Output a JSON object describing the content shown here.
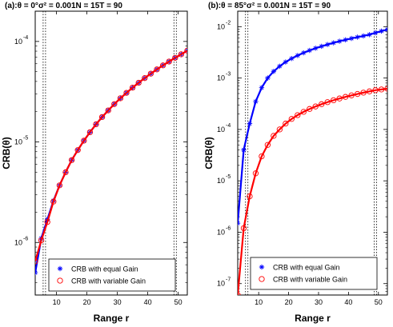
{
  "chart_data": [
    {
      "type": "line",
      "yscale": "log",
      "title": {
        "prefix": "(a):",
        "theta": "θ = 0°",
        "sigma": "σ² = 0.001",
        "n": "N = 15",
        "t": "T = 90"
      },
      "xlabel": "Range  r",
      "ylabel": "CRB(θ)",
      "xlim": [
        3,
        53
      ],
      "ylim": [
        3e-07,
        0.0002
      ],
      "xticks": [
        "10",
        "20",
        "30",
        "40",
        "50"
      ],
      "yticks": [
        {
          "mant": "10",
          "exp": "-6",
          "value": 1e-06
        },
        {
          "mant": "10",
          "exp": "-5",
          "value": 1e-05
        },
        {
          "mant": "10",
          "exp": "-4",
          "value": 0.0001
        }
      ],
      "vlines": [
        6,
        49
      ],
      "legend_position": "bottom-right",
      "series": [
        {
          "name": "CRB with equal Gain",
          "color": "#0000ff",
          "marker": "star",
          "x": [
            3,
            5,
            7,
            9,
            11,
            13,
            15,
            17,
            19,
            21,
            23,
            25,
            27,
            29,
            31,
            33,
            35,
            37,
            39,
            41,
            43,
            45,
            47,
            49,
            51,
            53
          ],
          "y": [
            5e-07,
            1.1e-06,
            1.7e-06,
            2.6e-06,
            3.7e-06,
            5e-06,
            6.6e-06,
            8.3e-06,
            1.03e-05,
            1.25e-05,
            1.5e-05,
            1.77e-05,
            2.06e-05,
            2.38e-05,
            2.72e-05,
            3.08e-05,
            3.47e-05,
            3.88e-05,
            4.32e-05,
            4.78e-05,
            5.27e-05,
            5.78e-05,
            6.31e-05,
            6.87e-05,
            7.45e-05,
            8.1e-05
          ]
        },
        {
          "name": "CRB with variable Gain",
          "color": "#ff0000",
          "marker": "circle",
          "x": [
            3,
            5,
            7,
            9,
            11,
            13,
            15,
            17,
            19,
            21,
            23,
            25,
            27,
            29,
            31,
            33,
            35,
            37,
            39,
            41,
            43,
            45,
            47,
            49,
            51,
            53
          ],
          "y": [
            6.5e-07,
            1.05e-06,
            1.6e-06,
            2.55e-06,
            3.7e-06,
            5e-06,
            6.6e-06,
            8.3e-06,
            1.03e-05,
            1.25e-05,
            1.5e-05,
            1.77e-05,
            2.06e-05,
            2.38e-05,
            2.72e-05,
            3.08e-05,
            3.47e-05,
            3.88e-05,
            4.32e-05,
            4.78e-05,
            5.27e-05,
            5.78e-05,
            6.31e-05,
            6.87e-05,
            7.45e-05,
            8.1e-05
          ]
        }
      ]
    },
    {
      "type": "line",
      "yscale": "log",
      "title": {
        "prefix": "(b):",
        "theta": "θ = 85°",
        "sigma": "σ² = 0.001",
        "n": "N = 15",
        "t": "T = 90"
      },
      "xlabel": "Range  r",
      "ylabel": "CRB(θ)",
      "xlim": [
        3,
        53
      ],
      "ylim": [
        6e-08,
        0.02
      ],
      "xticks": [
        "10",
        "20",
        "30",
        "40",
        "50"
      ],
      "yticks": [
        {
          "mant": "10",
          "exp": "-7",
          "value": 1e-07
        },
        {
          "mant": "10",
          "exp": "-6",
          "value": 1e-06
        },
        {
          "mant": "10",
          "exp": "-5",
          "value": 1e-05
        },
        {
          "mant": "10",
          "exp": "-4",
          "value": 0.0001
        },
        {
          "mant": "10",
          "exp": "-3",
          "value": 0.001
        },
        {
          "mant": "10",
          "exp": "-2",
          "value": 0.01
        }
      ],
      "vlines": [
        6,
        49
      ],
      "legend_position": "bottom-right",
      "series": [
        {
          "name": "CRB with equal Gain",
          "color": "#0000ff",
          "marker": "star",
          "x": [
            3,
            5,
            7,
            9,
            11,
            13,
            15,
            17,
            19,
            21,
            23,
            25,
            27,
            29,
            31,
            33,
            35,
            37,
            39,
            41,
            43,
            45,
            47,
            49,
            51,
            53
          ],
          "y": [
            1.5e-06,
            4e-05,
            0.00013,
            0.00035,
            0.00065,
            0.001,
            0.00135,
            0.0017,
            0.00205,
            0.0024,
            0.00275,
            0.0031,
            0.00345,
            0.0038,
            0.00415,
            0.0045,
            0.00485,
            0.0052,
            0.00555,
            0.0059,
            0.00625,
            0.0066,
            0.007,
            0.0076,
            0.0082,
            0.0088
          ]
        },
        {
          "name": "CRB with variable Gain",
          "color": "#ff0000",
          "marker": "circle",
          "x": [
            3,
            5,
            7,
            9,
            11,
            13,
            15,
            17,
            19,
            21,
            23,
            25,
            27,
            29,
            31,
            33,
            35,
            37,
            39,
            41,
            43,
            45,
            47,
            49,
            51,
            53
          ],
          "y": [
            6e-08,
            1.2e-06,
            5e-06,
            1.4e-05,
            3e-05,
            5e-05,
            7.5e-05,
            0.0001,
            0.00013,
            0.00016,
            0.00019,
            0.00022,
            0.00025,
            0.00028,
            0.00031,
            0.00034,
            0.00037,
            0.0004,
            0.00043,
            0.00046,
            0.00049,
            0.00052,
            0.00055,
            0.00058,
            0.0006,
            0.00062
          ]
        }
      ]
    }
  ]
}
